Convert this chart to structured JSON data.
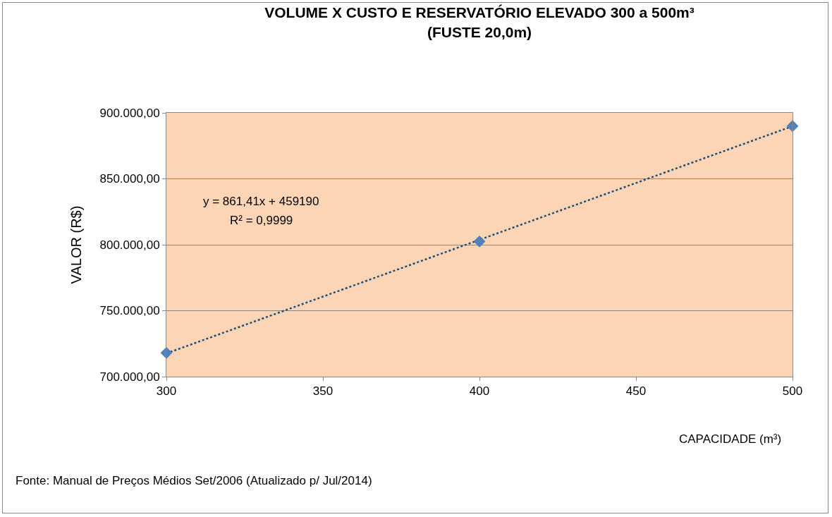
{
  "chart_data": {
    "type": "scatter",
    "title": "VOLUME X CUSTO E RESERVATÓRIO ELEVADO 300 a 500m³\n(FUSTE 20,0m)",
    "xlabel": "CAPACIDADE (m³)",
    "ylabel": "VALOR (R$)",
    "x": [
      300,
      400,
      500
    ],
    "series": [
      {
        "color": "#4f81bd",
        "marker": "diamond",
        "values": [
          718000,
          802500,
          890000
        ]
      },
      {
        "type": "line",
        "color": "#1f4e79",
        "line_style": "dotted",
        "marker": "none",
        "x": [
          300,
          500
        ],
        "values": [
          717600,
          889900
        ]
      }
    ],
    "annotations": [
      "y = 861,41x + 459190",
      "R² = 0,9999",
      "Fonte: Manual de Preços Médios Set/2006 (Atualizado p/ Jul/2014)"
    ],
    "xlim": [
      300,
      500
    ],
    "xticks": [
      300,
      350,
      400,
      450,
      500
    ],
    "ylim": [
      700000,
      900000
    ],
    "yticks": [
      {
        "value": 700000,
        "label": "700.000,00"
      },
      {
        "value": 750000,
        "label": "750.000,00"
      },
      {
        "value": 800000,
        "label": "800.000,00"
      },
      {
        "value": 850000,
        "label": "850.000,00"
      },
      {
        "value": 900000,
        "label": "900.000,00"
      }
    ],
    "grid": "y"
  }
}
